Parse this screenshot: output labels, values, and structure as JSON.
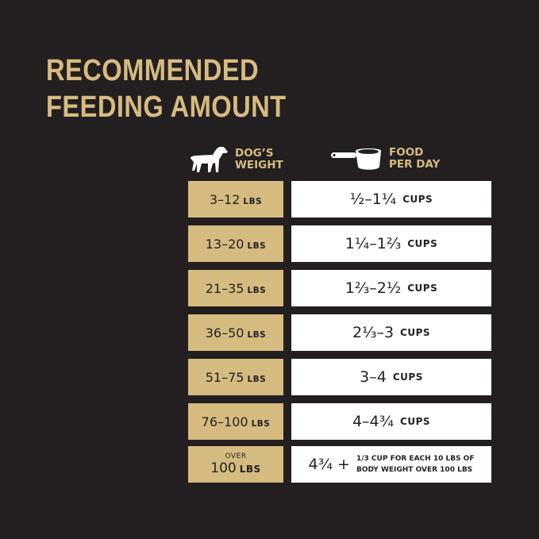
{
  "title": {
    "line1": "RECOMMENDED",
    "line2": "FEEDING AMOUNT"
  },
  "headers": {
    "weight": {
      "icon": "dog-icon",
      "line1": "DOG’S",
      "line2": "WEIGHT"
    },
    "food": {
      "icon": "measuring-cup-icon",
      "line1": "FOOD",
      "line2": "PER DAY"
    }
  },
  "colors": {
    "background": "#231f20",
    "accent": "#d6bb80",
    "cell": "#ffffff"
  },
  "rows": [
    {
      "weight": "3–12",
      "weight_unit": "LBS",
      "food": "½–1¼",
      "food_unit": "CUPS"
    },
    {
      "weight": "13–20",
      "weight_unit": "LBS",
      "food": "1¼–1⅔",
      "food_unit": "CUPS"
    },
    {
      "weight": "21–35",
      "weight_unit": "LBS",
      "food": "1⅔–2½",
      "food_unit": "CUPS"
    },
    {
      "weight": "36–50",
      "weight_unit": "LBS",
      "food": "2⅓–3",
      "food_unit": "CUPS"
    },
    {
      "weight": "51–75",
      "weight_unit": "LBS",
      "food": "3–4",
      "food_unit": "CUPS"
    },
    {
      "weight": "76–100",
      "weight_unit": "LBS",
      "food": "4–4¾",
      "food_unit": "CUPS"
    }
  ],
  "last_row": {
    "weight_prefix": "OVER",
    "weight": "100",
    "weight_unit": "LBS",
    "food": "4¾ +",
    "note_line1": "1/3 CUP FOR EACH 10 LBS OF",
    "note_line2": "BODY WEIGHT OVER 100 LBS"
  }
}
